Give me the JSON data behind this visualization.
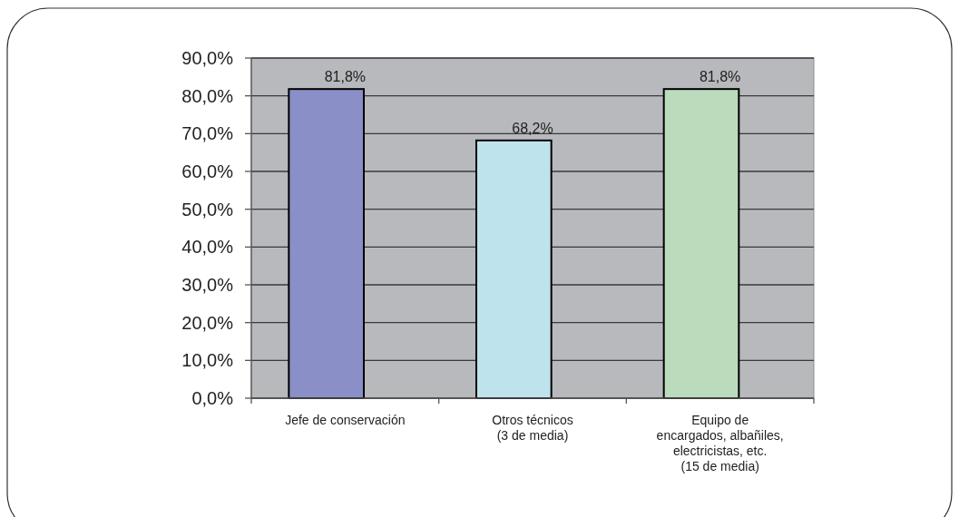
{
  "chart_data": {
    "type": "bar",
    "categories": [
      "Jefe de conservación",
      "Otros técnicos\n(3 de media)",
      "Equipo de\nencargados, albañiles,\nelectricistas, etc.\n(15 de media)"
    ],
    "values": [
      81.8,
      68.2,
      81.8
    ],
    "colors": [
      "#8a8fc7",
      "#bfe3ec",
      "#badcbc"
    ],
    "value_labels": [
      "81,8%",
      "68,2%",
      "81,8%"
    ],
    "ylim": [
      0,
      90
    ],
    "yticks": [
      {
        "value": 0,
        "label": "0,0%"
      },
      {
        "value": 10,
        "label": "10,0%"
      },
      {
        "value": 20,
        "label": "20,0%"
      },
      {
        "value": 30,
        "label": "30,0%"
      },
      {
        "value": 40,
        "label": "40,0%"
      },
      {
        "value": 50,
        "label": "50,0%"
      },
      {
        "value": 60,
        "label": "60,0%"
      },
      {
        "value": 70,
        "label": "70,0%"
      },
      {
        "value": 80,
        "label": "80,0%"
      },
      {
        "value": 90,
        "label": "90,0%"
      }
    ],
    "grid": "y"
  }
}
